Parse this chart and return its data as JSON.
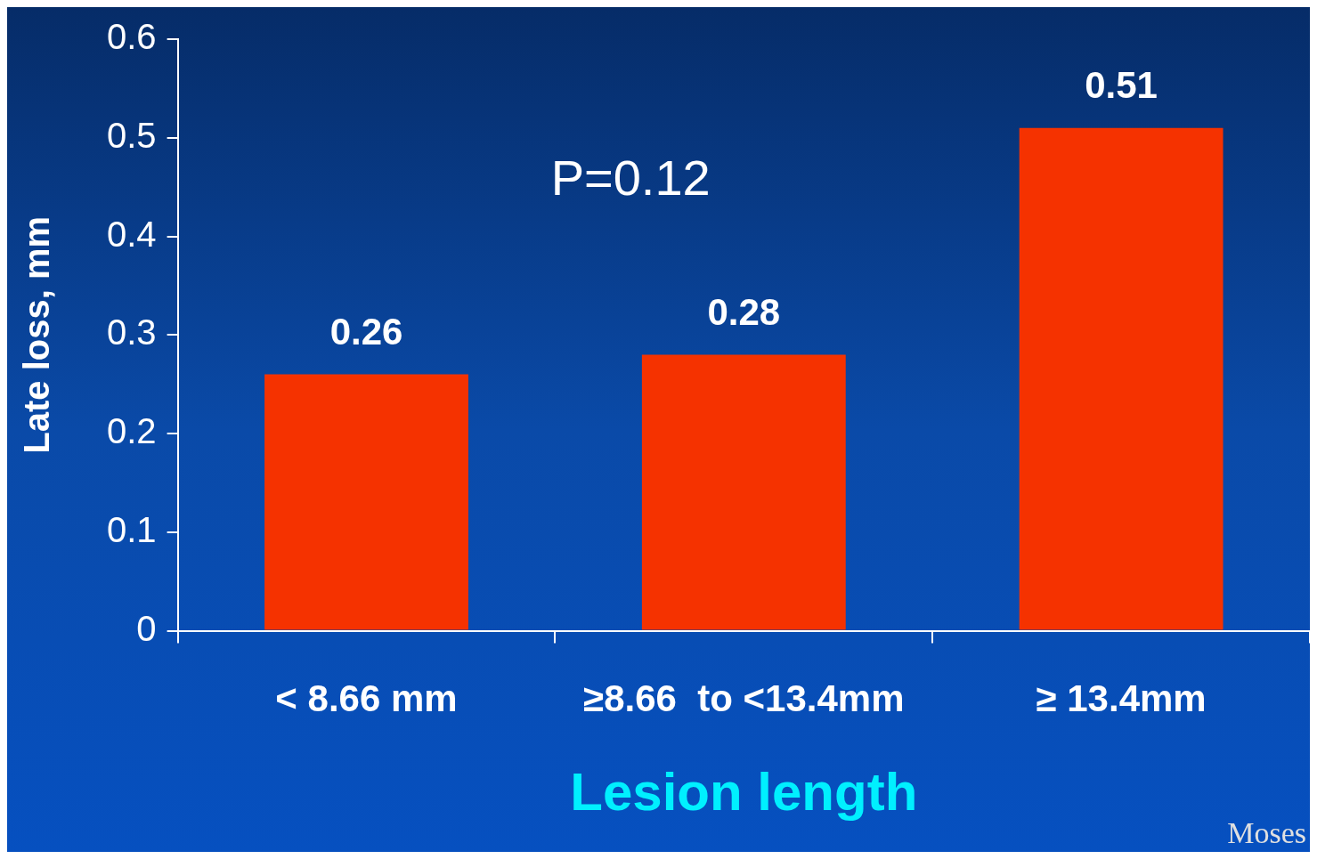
{
  "chart_data": {
    "type": "bar",
    "categories": [
      "< 8.66 mm",
      "≥8.66  to <13.4mm",
      "≥ 13.4mm"
    ],
    "values": [
      0.26,
      0.28,
      0.51
    ],
    "color": "#f53200",
    "ylabel": "Late loss, mm",
    "xlabel": "Lesion length",
    "ylim": [
      0,
      0.6
    ],
    "yticks": [
      0,
      0.1,
      0.2,
      0.3,
      0.4,
      0.5,
      0.6
    ],
    "grid": false,
    "legend": false,
    "data_labels": true,
    "annotations": [
      "P=0.12",
      "Moses"
    ]
  }
}
